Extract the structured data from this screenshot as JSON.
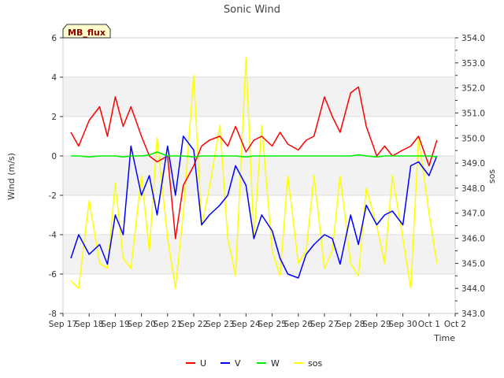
{
  "chart_data": {
    "type": "line",
    "title": "Sonic Wind",
    "xlabel": "Time",
    "ylabel": "Wind (m/s)",
    "y2label": "sos",
    "badge": "MB_flux",
    "x_ticks": [
      "Sep 17",
      "Sep 18",
      "Sep 19",
      "Sep 20",
      "Sep 21",
      "Sep 22",
      "Sep 23",
      "Sep 24",
      "Sep 25",
      "Sep 26",
      "Sep 27",
      "Sep 28",
      "Sep 29",
      "Sep 30",
      "Oct 1",
      "Oct 2"
    ],
    "xlim": [
      0,
      15
    ],
    "ylim": [
      -8,
      6
    ],
    "y_ticks": [
      -8,
      -6,
      -4,
      -2,
      0,
      2,
      4,
      6
    ],
    "y2lim": [
      343,
      354
    ],
    "y2_ticks": [
      343.0,
      344.0,
      345.0,
      346.0,
      347.0,
      348.0,
      349.0,
      350.0,
      351.0,
      352.0,
      353.0,
      354.0
    ],
    "x_days": [
      0.3,
      0.6,
      1.0,
      1.4,
      1.7,
      2.0,
      2.3,
      2.6,
      3.0,
      3.3,
      3.6,
      4.0,
      4.3,
      4.6,
      5.0,
      5.3,
      5.6,
      6.0,
      6.3,
      6.6,
      7.0,
      7.3,
      7.6,
      8.0,
      8.3,
      8.6,
      9.0,
      9.3,
      9.6,
      10.0,
      10.3,
      10.6,
      11.0,
      11.3,
      11.6,
      12.0,
      12.3,
      12.6,
      13.0,
      13.3,
      13.6,
      14.0,
      14.3
    ],
    "series": [
      {
        "name": "U",
        "color": "#ff0000",
        "axis": "left",
        "values": [
          1.2,
          0.5,
          1.8,
          2.5,
          1.0,
          3.0,
          1.5,
          2.5,
          1.0,
          0.0,
          -0.3,
          0.0,
          -4.2,
          -1.5,
          -0.5,
          0.5,
          0.8,
          1.0,
          0.5,
          1.5,
          0.2,
          0.8,
          1.0,
          0.5,
          1.2,
          0.6,
          0.3,
          0.8,
          1.0,
          3.0,
          2.0,
          1.2,
          3.2,
          3.5,
          1.5,
          0.0,
          0.5,
          0.0,
          0.3,
          0.5,
          1.0,
          -0.5,
          0.8
        ]
      },
      {
        "name": "V",
        "color": "#0000ff",
        "axis": "left",
        "values": [
          -5.2,
          -4.0,
          -5.0,
          -4.5,
          -5.5,
          -3.0,
          -4.0,
          0.5,
          -2.0,
          -1.0,
          -3.0,
          0.5,
          -2.0,
          1.0,
          0.3,
          -3.5,
          -3.0,
          -2.5,
          -2.0,
          -0.5,
          -1.5,
          -4.2,
          -3.0,
          -3.8,
          -5.2,
          -6.0,
          -6.2,
          -5.0,
          -4.5,
          -4.0,
          -4.2,
          -5.5,
          -3.0,
          -4.5,
          -2.5,
          -3.5,
          -3.0,
          -2.8,
          -3.5,
          -0.5,
          -0.3,
          -1.0,
          0.0
        ]
      },
      {
        "name": "W",
        "color": "#00ee00",
        "axis": "left",
        "values": [
          0.0,
          0.0,
          -0.05,
          0.0,
          0.0,
          0.0,
          -0.05,
          0.0,
          0.0,
          0.05,
          0.2,
          0.0,
          0.0,
          0.0,
          -0.05,
          0.0,
          0.0,
          0.0,
          0.0,
          0.0,
          -0.05,
          0.0,
          0.0,
          0.0,
          0.0,
          0.0,
          0.0,
          0.0,
          0.0,
          0.0,
          0.0,
          0.0,
          0.0,
          0.05,
          0.0,
          -0.05,
          0.0,
          0.0,
          0.0,
          0.0,
          0.0,
          0.0,
          -0.05
        ]
      },
      {
        "name": "sos",
        "color": "#ffff00",
        "axis": "right",
        "values": [
          344.3,
          344.0,
          347.5,
          345.0,
          344.8,
          348.2,
          345.2,
          344.8,
          348.5,
          345.5,
          350.0,
          346.0,
          344.0,
          347.0,
          352.5,
          346.5,
          348.0,
          350.5,
          346.0,
          344.5,
          353.2,
          346.0,
          350.5,
          345.5,
          344.5,
          348.5,
          345.0,
          345.5,
          348.5,
          344.8,
          345.5,
          348.5,
          345.0,
          344.5,
          348.0,
          346.5,
          345.0,
          348.5,
          346.0,
          344.0,
          350.0,
          347.0,
          345.0
        ]
      }
    ],
    "legend": [
      "U",
      "V",
      "W",
      "sos"
    ],
    "legend_position": "bottom-center",
    "grid": true
  }
}
